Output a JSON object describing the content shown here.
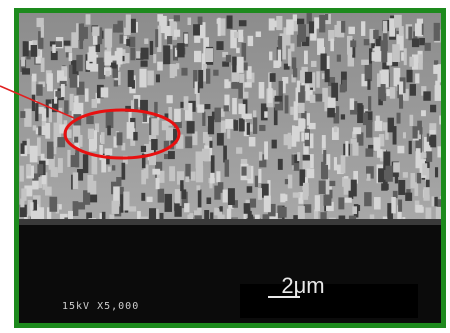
{
  "image": {
    "scale_bar_label": "2μm",
    "info_label": "15kV X5,000"
  }
}
